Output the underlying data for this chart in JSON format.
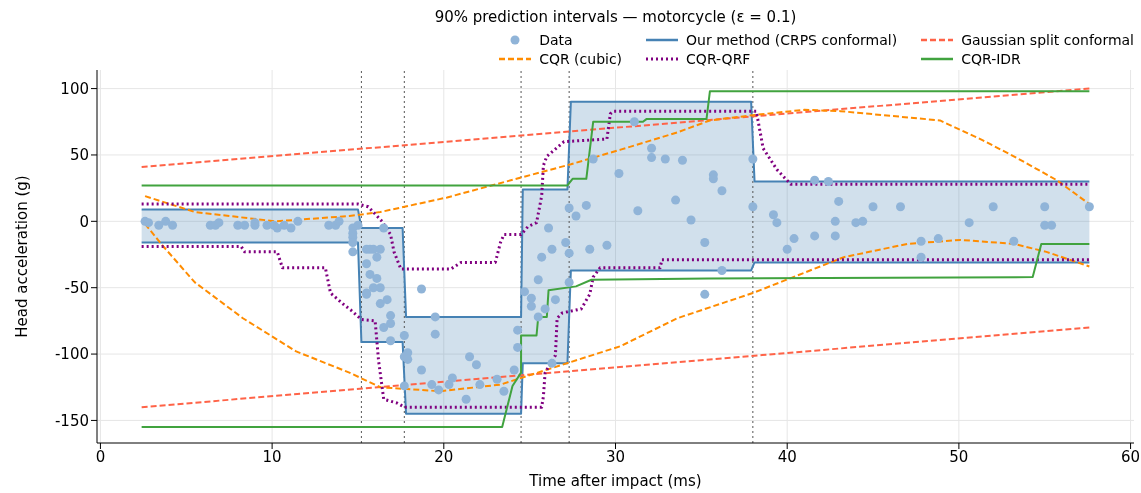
{
  "chart_data": {
    "type": "line",
    "title": "90% prediction intervals — motorcycle (ε = 0.1)",
    "xlabel": "Time after impact (ms)",
    "ylabel": "Head acceleration (g)",
    "xlim": [
      -0.2,
      60.2
    ],
    "ylim": [
      -167,
      114
    ],
    "xticks": [
      0,
      10,
      20,
      30,
      40,
      50,
      60
    ],
    "yticks": [
      -150,
      -100,
      -50,
      0,
      50,
      100
    ],
    "grid": true,
    "legend": "top right",
    "marker": "none",
    "series": [
      {
        "name": "Data",
        "type": "scatter",
        "marker": "circle",
        "color": "#90b4d8",
        "x": [
          2.6,
          2.8,
          3.4,
          3.8,
          4.2,
          6.4,
          6.7,
          6.9,
          8.0,
          8.4,
          9.0,
          9.0,
          9.7,
          10.1,
          10.3,
          10.7,
          11.1,
          11.5,
          13.3,
          13.7,
          13.9,
          14.7,
          14.7,
          14.7,
          14.7,
          14.7,
          15.0,
          15.5,
          15.5,
          15.7,
          15.9,
          16.1,
          16.3,
          15.7,
          16.1,
          15.5,
          15.5,
          15.9,
          16.3,
          16.3,
          16.5,
          16.5,
          16.7,
          16.9,
          16.9,
          16.9,
          17.7,
          17.7,
          17.9,
          17.9,
          17.7,
          18.7,
          19.5,
          19.5,
          18.7,
          19.3,
          19.7,
          20.3,
          20.5,
          21.3,
          21.5,
          21.9,
          22.1,
          23.1,
          23.5,
          24.1,
          24.3,
          24.3,
          24.7,
          25.1,
          25.1,
          25.5,
          25.5,
          25.7,
          25.9,
          26.1,
          26.3,
          26.5,
          26.3,
          27.1,
          27.3,
          27.3,
          27.7,
          28.3,
          28.5,
          28.7,
          29.5,
          30.2,
          27.3,
          31.1,
          31.3,
          32.1,
          32.1,
          32.9,
          33.9,
          33.5,
          34.4,
          35.2,
          35.2,
          35.7,
          35.7,
          36.2,
          36.2,
          38.0,
          38.0,
          39.2,
          39.4,
          40.0,
          40.4,
          41.6,
          41.6,
          42.4,
          42.8,
          42.8,
          43.0,
          44.0,
          44.4,
          45.0,
          46.6,
          47.8,
          47.8,
          48.8,
          50.6,
          52.0,
          53.2,
          55.0,
          55.0,
          55.4,
          57.6
        ],
        "values": [
          0,
          -1,
          -3,
          0,
          -3,
          -3,
          -3,
          -1,
          -3,
          -3,
          -1,
          -3,
          -3,
          -3,
          -5,
          -3,
          -5,
          0,
          -3,
          -3,
          0,
          -5,
          -9,
          -12,
          -16,
          -23,
          -3,
          -21,
          -32,
          -21,
          -21,
          -27,
          -21,
          -40,
          -43,
          -54,
          -55,
          -50,
          -50,
          -62,
          -80,
          -5,
          -59,
          -71,
          -77,
          -90,
          -86,
          -102,
          -99,
          -104,
          -124,
          -51,
          -72,
          -85,
          -112,
          -123,
          -127,
          -123,
          -118,
          -134,
          -102,
          -108,
          -123,
          -119,
          -128,
          -112,
          -82,
          -95,
          -53,
          -58,
          -64,
          -44,
          -72,
          -27,
          -66,
          -5,
          -21,
          -59,
          -107,
          -16,
          -24,
          10,
          4,
          12,
          -21,
          47,
          -18,
          36,
          -46,
          75,
          8,
          55,
          48,
          47,
          46,
          16,
          1,
          -16,
          -55,
          35,
          32,
          23,
          -37,
          47,
          11,
          5,
          -1,
          -21,
          -13,
          -11,
          31,
          30,
          -11,
          0,
          15,
          -1,
          0,
          11,
          11,
          -15,
          -27,
          -13,
          -1,
          11,
          -15,
          11,
          -3,
          -3,
          11
        ]
      },
      {
        "name": "Our method (CRPS conformal)",
        "type": "line",
        "line_style": "solid",
        "color": "#4682b4",
        "x": [
          2.4,
          15.0,
          15.2,
          17.6,
          17.8,
          24.5,
          24.6,
          27.2,
          27.4,
          37.9,
          38.1,
          57.6
        ],
        "values": [
          9,
          9,
          -5,
          -5,
          -72,
          -72,
          24,
          24,
          90,
          90,
          30,
          30
        ],
        "lower": [
          -16,
          -16,
          -91,
          -91,
          -145,
          -145,
          -107,
          -107,
          -37,
          -37,
          -31,
          -31
        ],
        "upper": [
          9,
          9,
          -5,
          -5,
          -72,
          -72,
          24,
          24,
          90,
          90,
          30,
          30
        ]
      },
      {
        "type": "line",
        "line_style": "solid",
        "color": "#4682b4",
        "x": [
          2.4,
          15.0,
          15.2,
          17.6,
          17.8,
          24.5,
          24.6,
          27.2,
          27.4,
          37.9,
          38.1,
          57.6
        ],
        "values": [
          -16,
          -16,
          -91,
          -91,
          -145,
          -145,
          -107,
          -107,
          -37,
          -37,
          -31,
          -31
        ]
      },
      {
        "name": "Gaussian split conformal",
        "type": "line",
        "line_style": "dashed",
        "color": "#ff6347",
        "x": [
          2.4,
          57.6
        ],
        "values": [
          41,
          100
        ]
      },
      {
        "name": "CQR (cubic)",
        "type": "line",
        "line_style": "dashed",
        "color": "#ff8c00",
        "x": [
          2.6,
          5.5,
          10.2,
          14.5,
          16.3,
          20.2,
          24.5,
          27.4,
          30.3,
          33.6,
          35.5,
          38,
          41,
          43.1,
          48.9,
          51.4,
          53.2,
          55.7,
          57.6
        ],
        "values": [
          19,
          7,
          0,
          4,
          7,
          18,
          33,
          43,
          54,
          67,
          76,
          80,
          84,
          83,
          76,
          61,
          49,
          31,
          13
        ]
      },
      {
        "name": "CQR-QRF",
        "type": "line",
        "line_style": "dotted",
        "color": "#800080",
        "x": [
          2.4,
          15.0,
          15.6,
          16.4,
          16.9,
          17.1,
          17.5,
          20.4,
          21.0,
          23.0,
          23.3,
          23.5,
          24.5,
          24.9,
          25.4,
          25.7,
          25.8,
          26.0,
          27.0,
          29.5,
          29.7,
          29.9,
          38.2,
          38.6,
          39.4,
          40.2,
          57.6
        ],
        "values": [
          13,
          13,
          11,
          0,
          -10,
          -23,
          -36,
          -36,
          -31,
          -31,
          -16,
          -10,
          -10,
          -4,
          -1,
          19,
          42,
          49,
          60,
          62,
          81,
          83,
          83,
          55,
          39,
          28,
          28
        ]
      },
      {
        "name": "CQR-IDR",
        "type": "line",
        "line_style": "solid",
        "color": "#41a33f",
        "x": [
          2.4,
          27.2,
          27.5,
          28.3,
          28.7,
          31.6,
          31.8,
          35.3,
          35.5,
          57.6
        ],
        "values": [
          27,
          27,
          32,
          32,
          75,
          75,
          77,
          77,
          98,
          98
        ]
      },
      {
        "type": "line",
        "line_style": "dashed",
        "color": "#ff6347",
        "x": [
          2.4,
          57.6
        ],
        "values": [
          -140,
          -80
        ]
      },
      {
        "type": "line",
        "line_style": "dashed",
        "color": "#ff8c00",
        "x": [
          2.6,
          3.6,
          5.5,
          8.3,
          11.4,
          14.5,
          16.3,
          19.8,
          23.3,
          30.3,
          33.6,
          38,
          43.3,
          47,
          50.1,
          53.2,
          55.1,
          57.6
        ],
        "values": [
          -2,
          -18,
          -46,
          -73,
          -98,
          -114,
          -125,
          -128,
          -123,
          -94,
          -73,
          -54,
          -27,
          -17,
          -14,
          -17,
          -23,
          -34
        ]
      },
      {
        "type": "line",
        "line_style": "dotted",
        "color": "#800080",
        "x": [
          2.4,
          8.2,
          8.4,
          10.3,
          10.6,
          13.1,
          13.4,
          14.2,
          14.6,
          15.2,
          16.0,
          16.2,
          16.5,
          17.3,
          17.7,
          25.7,
          25.8,
          25.9,
          26.5,
          26.6,
          26.9,
          28.0,
          28.5,
          28.7,
          29.1,
          32.6,
          32.7,
          57.6
        ],
        "values": [
          -19,
          -19,
          -23,
          -23,
          -35,
          -35,
          -54,
          -63,
          -67,
          -74,
          -75,
          -105,
          -134,
          -137,
          -140,
          -140,
          -132,
          -114,
          -101,
          -73,
          -69,
          -66,
          -55,
          -42,
          -35,
          -35,
          -29,
          -29
        ]
      },
      {
        "type": "line",
        "line_style": "solid",
        "color": "#41a33f",
        "x": [
          2.4,
          23.4,
          24.0,
          24.5,
          24.5,
          25.4,
          25.5,
          26.0,
          26.1,
          27.7,
          28.6,
          35.4,
          54.3,
          54.8,
          57.6
        ],
        "values": [
          -155,
          -155,
          -124,
          -114,
          -86,
          -86,
          -72,
          -72,
          -52,
          -49,
          -44,
          -43,
          -42,
          -17,
          -17
        ]
      }
    ],
    "ref_lines": [
      {
        "axis": "x",
        "value": 15.2,
        "color": "#555555",
        "line_style": "dotted"
      },
      {
        "axis": "x",
        "value": 17.7,
        "color": "#555555",
        "line_style": "dotted"
      },
      {
        "axis": "x",
        "value": 24.5,
        "color": "#555555",
        "line_style": "dotted"
      },
      {
        "axis": "x",
        "value": 27.3,
        "color": "#555555",
        "line_style": "dotted"
      },
      {
        "axis": "x",
        "value": 38.0,
        "color": "#555555",
        "line_style": "dotted"
      }
    ]
  }
}
